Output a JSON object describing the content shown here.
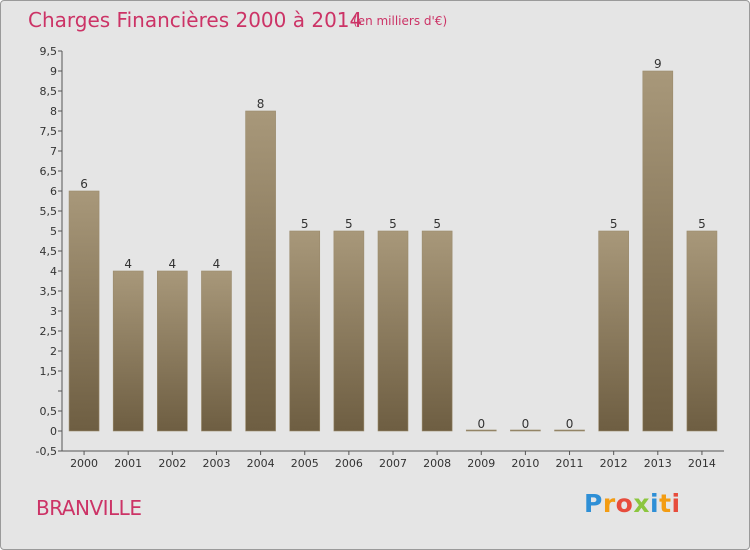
{
  "title": "Charges Financières 2000 à 2014",
  "unit": "(en milliers d'€)",
  "place": "BRANVILLE",
  "brand": {
    "letters": [
      {
        "ch": "P",
        "color": "#2e8fd6"
      },
      {
        "ch": "r",
        "color": "#f39c12"
      },
      {
        "ch": "o",
        "color": "#e74c3c"
      },
      {
        "ch": "x",
        "color": "#8cc63f"
      },
      {
        "ch": "i",
        "color": "#2e8fd6"
      },
      {
        "ch": "t",
        "color": "#f39c12"
      },
      {
        "ch": "i",
        "color": "#e74c3c"
      }
    ]
  },
  "colors": {
    "bar_top": "#a8987a",
    "bar_bottom": "#6e5e42",
    "accent": "#cc3366",
    "background": "#e5e5e5"
  },
  "chart_data": {
    "type": "bar",
    "title": "Charges Financières 2000 à 2014",
    "subtitle": "(en milliers d'€)",
    "categories": [
      "2000",
      "2001",
      "2002",
      "2003",
      "2004",
      "2005",
      "2006",
      "2007",
      "2008",
      "2009",
      "2010",
      "2011",
      "2012",
      "2013",
      "2014"
    ],
    "values": [
      6,
      4,
      4,
      4,
      8,
      5,
      5,
      5,
      5,
      0,
      0,
      0,
      5,
      9,
      5
    ],
    "data_labels": [
      "6",
      "4",
      "4",
      "4",
      "8",
      "5",
      "5",
      "5",
      "5",
      "0",
      "0",
      "0",
      "5",
      "9",
      "5"
    ],
    "ylim": [
      -0.5,
      9.5
    ],
    "yticks": [
      -0.5,
      0,
      0.5,
      1,
      1.5,
      2,
      2.5,
      3,
      3.5,
      4,
      4.5,
      5,
      5.5,
      6,
      6.5,
      7,
      7.5,
      8,
      8.5,
      9,
      9.5
    ],
    "ytick_labels": [
      "-0,5",
      "0",
      "0,5",
      "",
      "1,5",
      "2",
      "2,5",
      "3",
      "3,5",
      "4",
      "4,5",
      "5",
      "5,5",
      "6",
      "6,5",
      "7",
      "7,5",
      "8",
      "8,5",
      "9",
      "9,5"
    ],
    "grid": false,
    "legend": "none"
  }
}
